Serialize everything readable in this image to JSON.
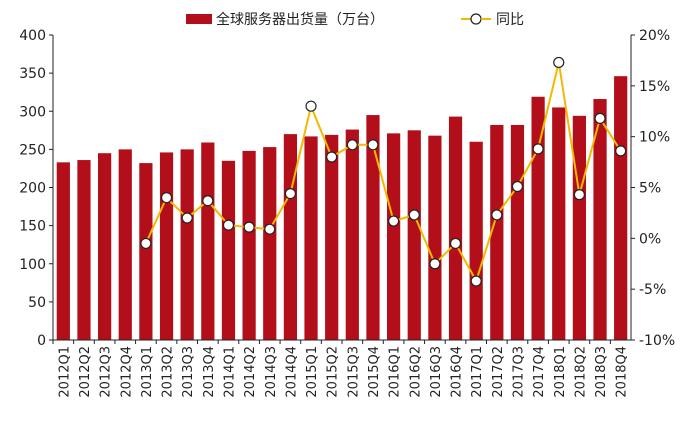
{
  "chart_data": {
    "type": "bar+line",
    "categories": [
      "2012Q1",
      "2012Q2",
      "2012Q3",
      "2012Q4",
      "2013Q1",
      "2013Q2",
      "2013Q3",
      "2013Q4",
      "2014Q1",
      "2014Q2",
      "2014Q3",
      "2014Q4",
      "2015Q1",
      "2015Q2",
      "2015Q3",
      "2015Q4",
      "2016Q1",
      "2016Q2",
      "2016Q3",
      "2016Q4",
      "2017Q1",
      "2017Q2",
      "2017Q3",
      "2017Q4",
      "2018Q1",
      "2018Q2",
      "2018Q3",
      "2018Q4"
    ],
    "series": [
      {
        "name": "全球服务器出货量（万台）",
        "type": "bar",
        "axis": "left",
        "color": "#b30f1a",
        "values": [
          233,
          236,
          245,
          250,
          232,
          246,
          250,
          259,
          235,
          248,
          253,
          270,
          267,
          269,
          276,
          295,
          271,
          275,
          268,
          293,
          260,
          282,
          282,
          319,
          305,
          294,
          316,
          346
        ]
      },
      {
        "name": "同比",
        "type": "line",
        "axis": "right",
        "color": "#f5b800",
        "values": [
          null,
          null,
          null,
          null,
          -0.5,
          4.0,
          2.0,
          3.7,
          1.3,
          1.1,
          0.9,
          4.4,
          13.0,
          8.0,
          9.2,
          9.2,
          1.7,
          2.3,
          -2.5,
          -0.5,
          -4.2,
          2.3,
          5.1,
          8.8,
          17.3,
          4.3,
          11.8,
          8.6
        ]
      }
    ],
    "y_left": {
      "min": 0,
      "max": 400,
      "step": 50,
      "ticks": [
        "0",
        "50",
        "100",
        "150",
        "200",
        "250",
        "300",
        "350",
        "400"
      ]
    },
    "y_right": {
      "min": -10,
      "max": 20,
      "step": 5,
      "ticks": [
        "-10%",
        "-5%",
        "0%",
        "5%",
        "10%",
        "15%",
        "20%"
      ]
    },
    "legend": {
      "position": "top"
    },
    "grid": false
  }
}
